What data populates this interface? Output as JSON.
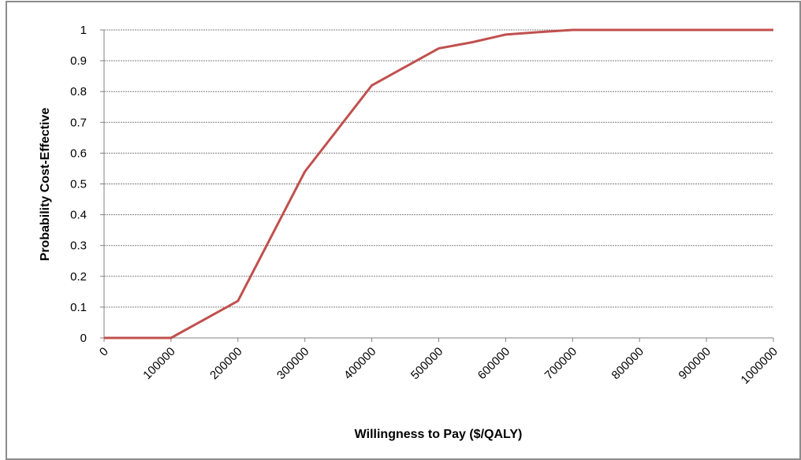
{
  "chart_data": {
    "type": "line",
    "x_label": "Willingness to Pay ($/QALY)",
    "y_label": "Probability Cost-Effective",
    "series": [
      {
        "color": "#c0504d",
        "x": [
          0,
          100000,
          150000,
          200000,
          250000,
          300000,
          350000,
          400000,
          450000,
          500000,
          550000,
          600000,
          650000,
          700000,
          800000,
          900000,
          1000000
        ],
        "values": [
          0,
          0,
          0.06,
          0.12,
          0.33,
          0.54,
          0.68,
          0.82,
          0.88,
          0.94,
          0.96,
          0.985,
          0.993,
          1,
          1,
          1,
          1
        ]
      }
    ],
    "xlim": [
      0,
      1000000
    ],
    "xticks": [
      0,
      100000,
      200000,
      300000,
      400000,
      500000,
      600000,
      700000,
      800000,
      900000,
      1000000
    ],
    "ylim": [
      0,
      1
    ],
    "yticks": [
      0,
      0.1,
      0.2,
      0.3,
      0.4,
      0.5,
      0.6,
      0.7,
      0.8,
      0.9,
      1
    ],
    "grid": true
  }
}
